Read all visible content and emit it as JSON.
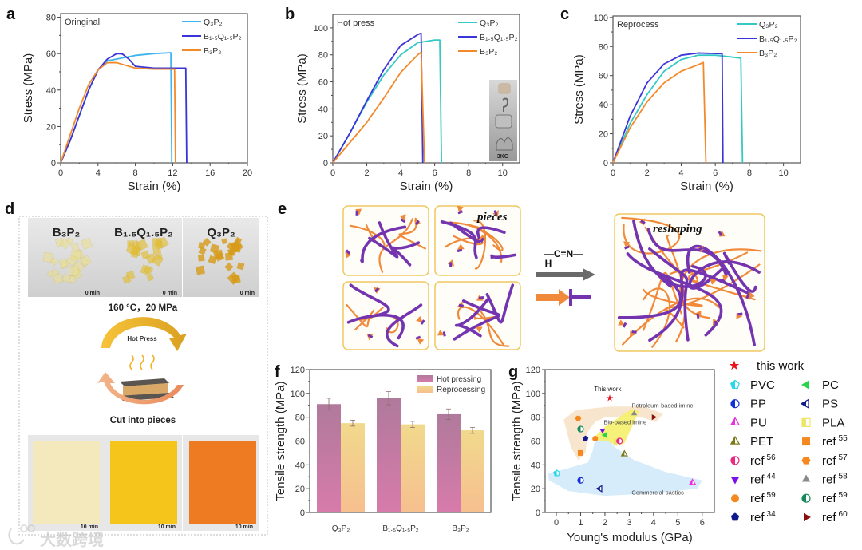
{
  "panel_labels": [
    "a",
    "b",
    "c",
    "d",
    "e",
    "f",
    "g"
  ],
  "chart_data": [
    {
      "id": "a",
      "type": "line",
      "inset_title": "Oringinal",
      "xlabel": "Strain (%)",
      "ylabel": "Stress (MPa)",
      "xlim": [
        0,
        20
      ],
      "ylim": [
        0,
        82
      ],
      "xticks": [
        "0",
        "4",
        "8",
        "12",
        "16",
        "20"
      ],
      "yticks": [
        "0",
        "20",
        "40",
        "60",
        "80"
      ],
      "legend_position": "top-right",
      "series": [
        {
          "name": "Q₃P₂",
          "color": "#3fb4ee",
          "points": [
            [
              0,
              0
            ],
            [
              1,
              12
            ],
            [
              2,
              26
            ],
            [
              3,
              40
            ],
            [
              4,
              51
            ],
            [
              5,
              56
            ],
            [
              6,
              57
            ],
            [
              8,
              59
            ],
            [
              10,
              60
            ],
            [
              11.8,
              60.5
            ],
            [
              11.9,
              0
            ]
          ]
        },
        {
          "name": "B₁.₅Q₁.₅P₂",
          "color": "#3a35d6",
          "points": [
            [
              0,
              0
            ],
            [
              1,
              12
            ],
            [
              2,
              26
            ],
            [
              3,
              40
            ],
            [
              4,
              51
            ],
            [
              5,
              57
            ],
            [
              6,
              60
            ],
            [
              6.6,
              59.8
            ],
            [
              7.3,
              57
            ],
            [
              8,
              53
            ],
            [
              10,
              52
            ],
            [
              13.4,
              52
            ],
            [
              13.5,
              0
            ]
          ]
        },
        {
          "name": "B₃P₂",
          "color": "#f28a2c",
          "points": [
            [
              0,
              0
            ],
            [
              1,
              15
            ],
            [
              2,
              30
            ],
            [
              3,
              43
            ],
            [
              4,
              51
            ],
            [
              5,
              55
            ],
            [
              6,
              55
            ],
            [
              8,
              52
            ],
            [
              10,
              51.5
            ],
            [
              12.2,
              51.5
            ],
            [
              12.3,
              0
            ]
          ]
        }
      ]
    },
    {
      "id": "b",
      "type": "line",
      "inset_title": "Hot press",
      "inset_photo_label": "3KG",
      "xlabel": "Strain (%)",
      "ylabel": "Stress (MPa)",
      "xlim": [
        0,
        11
      ],
      "ylim": [
        0,
        110
      ],
      "xticks": [
        "0",
        "2",
        "4",
        "6",
        "8",
        "10"
      ],
      "yticks": [
        "0",
        "20",
        "40",
        "60",
        "80",
        "100"
      ],
      "legend_position": "top-right",
      "series": [
        {
          "name": "Q₃P₂",
          "color": "#35c9c6",
          "points": [
            [
              0,
              0
            ],
            [
              1,
              22
            ],
            [
              2,
              45
            ],
            [
              3,
              65
            ],
            [
              4,
              80
            ],
            [
              5,
              89
            ],
            [
              6,
              91
            ],
            [
              6.3,
              91
            ],
            [
              6.4,
              0
            ]
          ]
        },
        {
          "name": "B₁.₅Q₁.₅P₂",
          "color": "#3a35d6",
          "points": [
            [
              0,
              0
            ],
            [
              1,
              22
            ],
            [
              2,
              46
            ],
            [
              3,
              69
            ],
            [
              4,
              87
            ],
            [
              5,
              95
            ],
            [
              5.2,
              96
            ],
            [
              5.3,
              0
            ]
          ]
        },
        {
          "name": "B₃P₂",
          "color": "#f28a2c",
          "points": [
            [
              0,
              0
            ],
            [
              1,
              15
            ],
            [
              2,
              30
            ],
            [
              3,
              48
            ],
            [
              4,
              67
            ],
            [
              5,
              80
            ],
            [
              5.2,
              82
            ],
            [
              5.4,
              0
            ]
          ]
        }
      ]
    },
    {
      "id": "c",
      "type": "line",
      "inset_title": "Reprocess",
      "xlabel": "Strain (%)",
      "ylabel": "Stress (MPa)",
      "xlim": [
        0,
        11
      ],
      "ylim": [
        0,
        101
      ],
      "xticks": [
        "0",
        "2",
        "4",
        "6",
        "8",
        "10"
      ],
      "yticks": [
        "0",
        "20",
        "40",
        "60",
        "80",
        "100"
      ],
      "legend_position": "top-right",
      "series": [
        {
          "name": "Q₃P₂",
          "color": "#35c9c6",
          "points": [
            [
              0,
              0
            ],
            [
              1,
              27
            ],
            [
              2,
              47
            ],
            [
              3,
              63
            ],
            [
              4,
              71
            ],
            [
              5,
              74
            ],
            [
              6,
              74
            ],
            [
              7.5,
              72
            ],
            [
              7.6,
              0
            ]
          ]
        },
        {
          "name": "B₁.₅Q₁.₅P₂",
          "color": "#3a35d6",
          "points": [
            [
              0,
              0
            ],
            [
              1,
              32
            ],
            [
              2,
              55
            ],
            [
              3,
              68
            ],
            [
              4,
              74
            ],
            [
              5,
              75.5
            ],
            [
              6.4,
              75
            ],
            [
              6.45,
              0
            ]
          ]
        },
        {
          "name": "B₃P₂",
          "color": "#f28a2c",
          "points": [
            [
              0,
              0
            ],
            [
              1,
              24
            ],
            [
              2,
              42
            ],
            [
              3,
              55
            ],
            [
              4,
              63
            ],
            [
              5,
              67.5
            ],
            [
              5.3,
              69
            ],
            [
              5.45,
              0
            ]
          ]
        }
      ]
    },
    {
      "id": "f",
      "type": "bar",
      "ylabel": "Tensile strength (MPa)",
      "ylim": [
        0,
        120
      ],
      "yticks": [
        "0",
        "20",
        "40",
        "60",
        "80",
        "100",
        "120"
      ],
      "categories": [
        "Q₃P₂",
        "B₁.₅Q₁.₅P₂",
        "B₃P₂"
      ],
      "legend_position": "top-right",
      "series": [
        {
          "name": "Hot pressing",
          "colors": [
            "#b07a9c",
            "#d77bab"
          ],
          "values": [
            91,
            96,
            82.5
          ],
          "errors": [
            5,
            5.5,
            4.5
          ]
        },
        {
          "name": "Reprocessing",
          "colors": [
            "#f1d98c",
            "#f6bf8f"
          ],
          "values": [
            75,
            74,
            69
          ],
          "errors": [
            2.5,
            2.5,
            2.5
          ]
        }
      ]
    },
    {
      "id": "g",
      "type": "scatter",
      "xlabel": "Young's modulus (GPa)",
      "ylabel": "Tensile strength (MPa)",
      "xlim": [
        -0.46,
        6.5
      ],
      "ylim": [
        0,
        120
      ],
      "xticks": [
        "0",
        "1",
        "2",
        "3",
        "4",
        "5",
        "6"
      ],
      "yticks": [
        "0",
        "20",
        "40",
        "60",
        "80",
        "100",
        "120"
      ],
      "annotation": "This work",
      "regions": [
        "Petroleum-based imine",
        "Bio-based imine",
        "Commercial pastics"
      ],
      "legend_position": "right",
      "points": [
        {
          "name": "this work",
          "sup": "",
          "marker": "star",
          "style": "full",
          "color": "#e8141a",
          "x": 2.2,
          "y": 96
        },
        {
          "name": "PVC",
          "sup": "",
          "marker": "pentagon",
          "style": "half",
          "color": "#27d8ea",
          "x": 0.02,
          "y": 33
        },
        {
          "name": "PC",
          "sup": "",
          "marker": "tri-left",
          "style": "full",
          "color": "#27d44a",
          "x": 2.0,
          "y": 65
        },
        {
          "name": "PP",
          "sup": "",
          "marker": "circle",
          "style": "half",
          "color": "#1030d8",
          "x": 1.0,
          "y": 27
        },
        {
          "name": "PS",
          "sup": "",
          "marker": "tri-left",
          "style": "half",
          "color": "#101a8a",
          "x": 1.8,
          "y": 20
        },
        {
          "name": "PU",
          "sup": "",
          "marker": "tri-up",
          "style": "half",
          "color": "#e830e0",
          "x": 5.6,
          "y": 25
        },
        {
          "name": "PLA",
          "sup": "",
          "marker": "square",
          "style": "half",
          "color": "#ece56a",
          "x": 2.5,
          "y": 59
        },
        {
          "name": "PET",
          "sup": "",
          "marker": "tri-up",
          "style": "half",
          "color": "#7a7a18",
          "x": 2.8,
          "y": 49
        },
        {
          "name": "ref",
          "sup": "55",
          "marker": "square",
          "style": "full",
          "color": "#f5881e",
          "x": 1.0,
          "y": 50
        },
        {
          "name": "ref",
          "sup": "56",
          "marker": "circle",
          "style": "half",
          "color": "#ec2a82",
          "x": 2.6,
          "y": 60
        },
        {
          "name": "ref",
          "sup": "57",
          "marker": "hexagon",
          "style": "full",
          "color": "#f5881e",
          "x": 0.9,
          "y": 79
        },
        {
          "name": "ref",
          "sup": "44",
          "marker": "tri-down",
          "style": "full",
          "color": "#7a10e8",
          "x": 1.9,
          "y": 69
        },
        {
          "name": "ref",
          "sup": "58",
          "marker": "tri-up",
          "style": "full",
          "color": "#8a8a8a",
          "x": 3.2,
          "y": 83
        },
        {
          "name": "ref",
          "sup": "59",
          "marker": "circle",
          "style": "full",
          "color": "#f5881e",
          "x": 1.6,
          "y": 62
        },
        {
          "name": "ref",
          "sup": "59",
          "marker": "circle",
          "style": "half",
          "color": "#158a58",
          "x": 1.0,
          "y": 70
        },
        {
          "name": "ref",
          "sup": "34",
          "marker": "pentagon",
          "style": "full",
          "color": "#101a8a",
          "x": 1.2,
          "y": 62
        },
        {
          "name": "ref",
          "sup": "60",
          "marker": "tri-right",
          "style": "full",
          "color": "#8a1010",
          "x": 4.0,
          "y": 80
        }
      ]
    }
  ],
  "panel_d": {
    "samples": [
      "B₃P₂",
      "B₁.₅Q₁.₅P₂",
      "Q₃P₂"
    ],
    "time_before": "0 min",
    "condition": "160 °C，20 MPa",
    "hot_press": "Hot Press",
    "cut": "Cut into pieces",
    "time_after": "10 min",
    "colors_after": [
      "#f3e9bd",
      "#f6c51c",
      "#ee7a22"
    ]
  },
  "panel_e": {
    "pieces": "pieces",
    "reshaping": "reshaping",
    "bond": "—C=N—",
    "bond_h": "H"
  },
  "watermark": "大数跨境"
}
